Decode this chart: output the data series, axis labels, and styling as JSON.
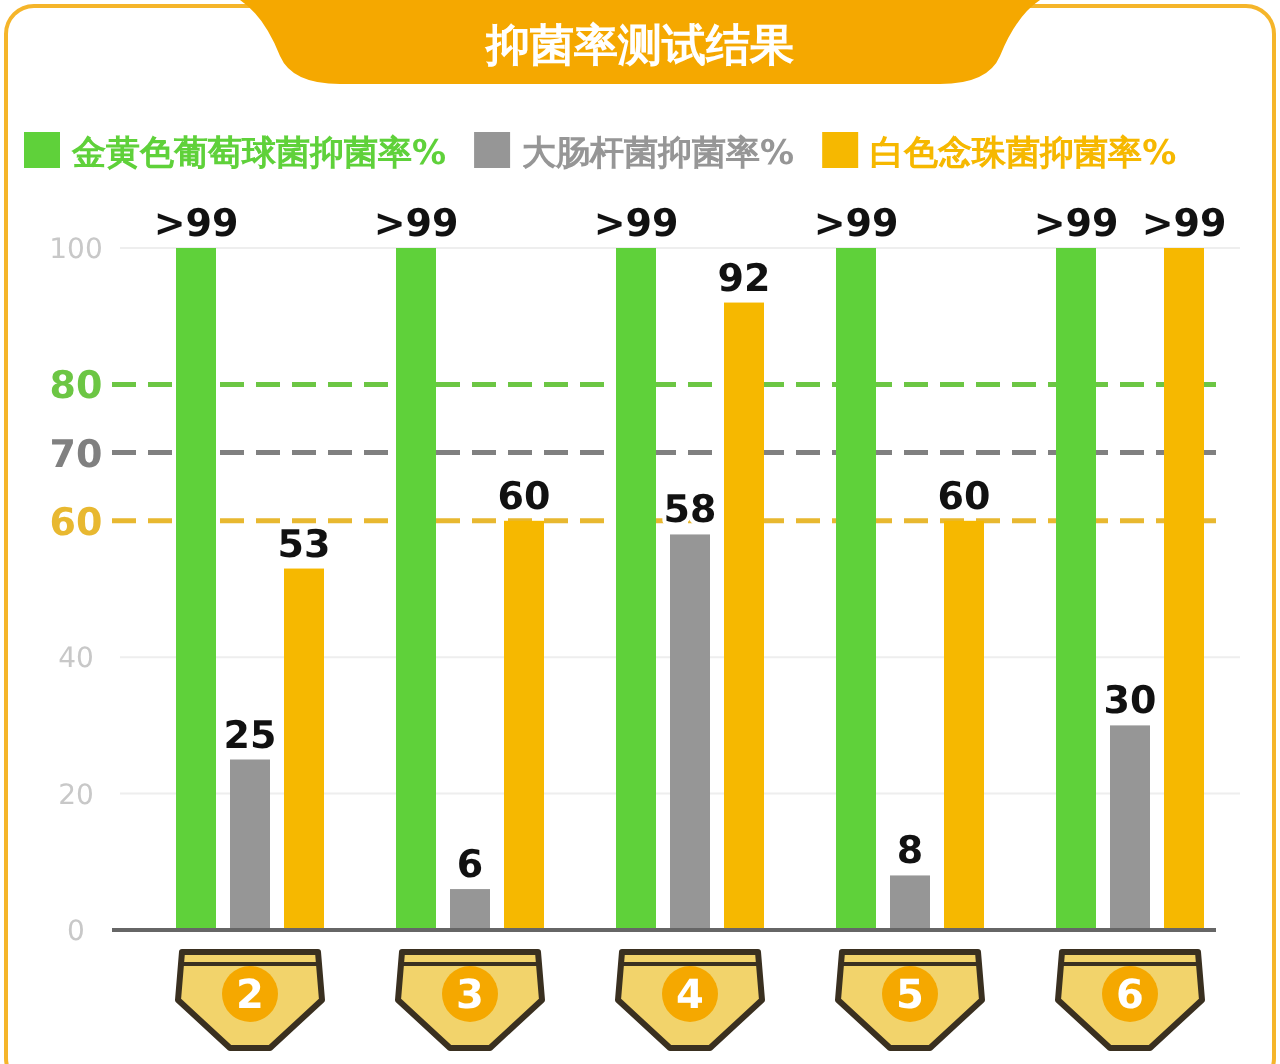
{
  "chart_data": {
    "type": "bar",
    "title": "抑菌率测试结果",
    "categories": [
      "2",
      "3",
      "4",
      "5",
      "6"
    ],
    "series": [
      {
        "name": "金黄色葡萄球菌抑菌率%",
        "color": "#5fd13a",
        "values": [
          100,
          100,
          100,
          100,
          100
        ],
        "value_labels": [
          ">99",
          ">99",
          ">99",
          ">99",
          ">99"
        ]
      },
      {
        "name": "大肠杆菌抑菌率%",
        "color": "#969696",
        "values": [
          25,
          6,
          58,
          8,
          30
        ],
        "value_labels": [
          "25",
          "6",
          "58",
          "8",
          "30"
        ]
      },
      {
        "name": "白色念珠菌抑菌率%",
        "color": "#f6b800",
        "values": [
          53,
          60,
          92,
          60,
          100
        ],
        "value_labels": [
          "53",
          "60",
          "92",
          "60",
          ">99"
        ]
      }
    ],
    "ylim": [
      0,
      100
    ],
    "yticks": [
      0,
      20,
      40,
      100
    ],
    "grid": "y",
    "legend": "top",
    "ref_lines": [
      {
        "axis": "y",
        "value": 80,
        "label": "80",
        "color": "#6cc644",
        "line_style": "dashed"
      },
      {
        "axis": "y",
        "value": 70,
        "label": "70",
        "color": "#808080",
        "line_style": "dashed"
      },
      {
        "axis": "y",
        "value": 60,
        "label": "60",
        "color": "#e8b830",
        "line_style": "dashed"
      }
    ]
  }
}
